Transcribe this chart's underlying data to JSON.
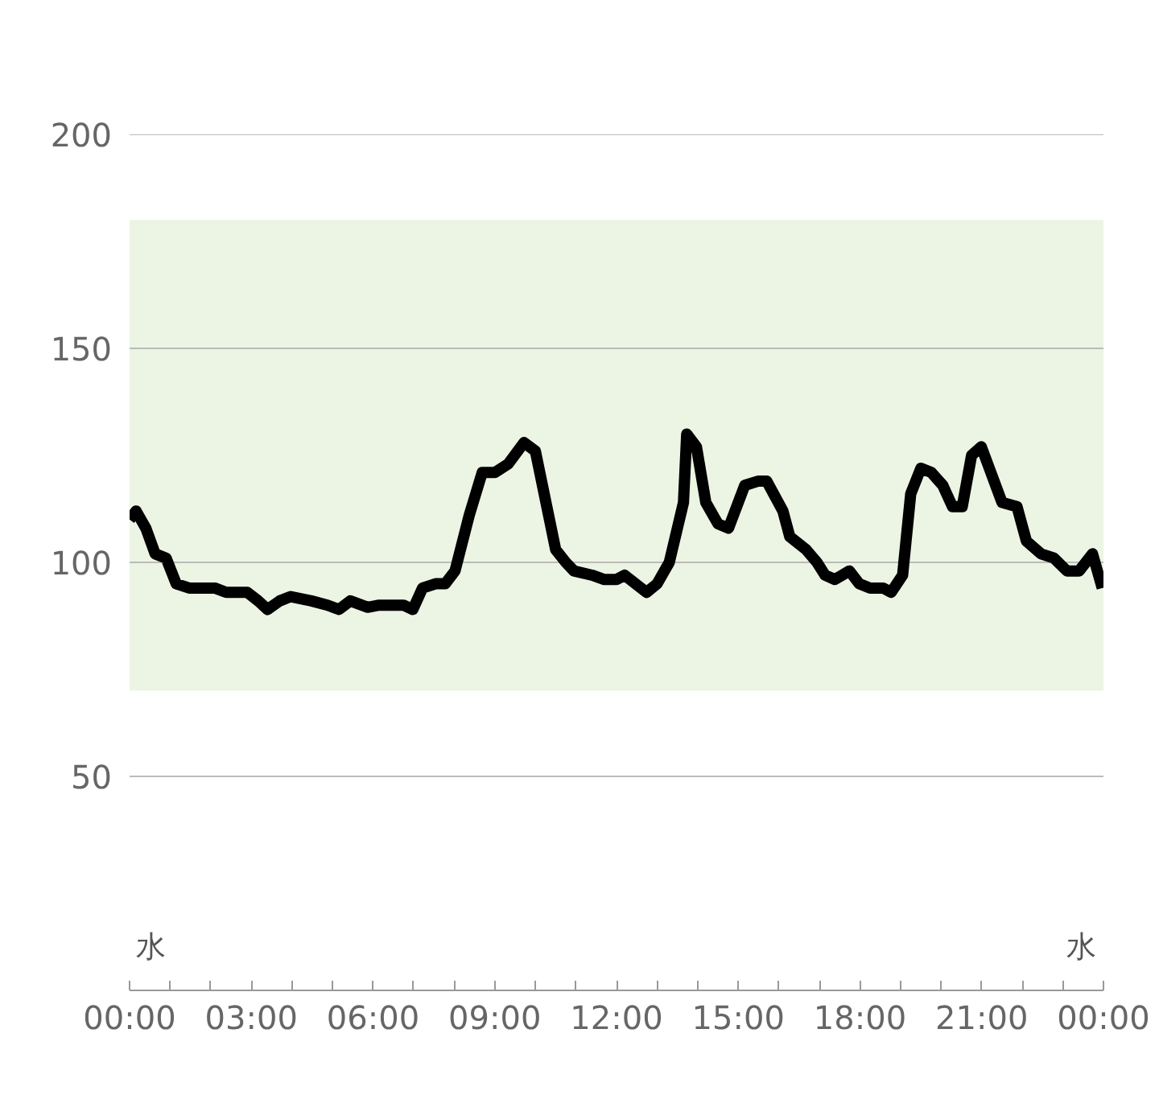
{
  "chart_data": {
    "type": "line",
    "x": [
      0,
      0.16,
      0.4,
      0.63,
      0.9,
      1.15,
      1.47,
      2.1,
      2.38,
      2.9,
      3.17,
      3.4,
      3.7,
      3.97,
      4.48,
      4.88,
      5.16,
      5.44,
      5.87,
      6.15,
      6.75,
      6.98,
      7.22,
      7.54,
      7.78,
      8.02,
      8.37,
      8.69,
      9.0,
      9.33,
      9.72,
      10.0,
      10.5,
      10.75,
      10.95,
      11.4,
      11.7,
      12.0,
      12.2,
      12.74,
      13.0,
      13.3,
      13.65,
      13.73,
      13.97,
      14.2,
      14.5,
      14.76,
      15.16,
      15.5,
      15.7,
      16.1,
      16.27,
      16.67,
      16.94,
      17.14,
      17.38,
      17.74,
      17.98,
      18.25,
      18.57,
      18.77,
      19.05,
      19.25,
      19.5,
      19.76,
      20.04,
      20.28,
      20.52,
      20.75,
      20.99,
      21.5,
      21.87,
      22.1,
      22.46,
      22.78,
      23.1,
      23.4,
      23.73,
      23.97
    ],
    "series": [
      {
        "color": "#000000",
        "values": [
          110,
          112,
          108,
          102,
          101,
          95,
          94,
          94,
          93,
          93,
          91,
          89,
          91,
          92,
          91,
          90,
          89,
          91,
          89.5,
          90,
          90,
          89,
          94,
          95,
          95,
          98,
          111,
          121,
          121,
          123,
          128,
          126,
          103,
          100,
          98,
          97,
          96,
          96,
          97,
          93,
          95,
          100,
          114,
          130,
          127,
          114,
          109,
          108,
          118,
          119,
          119,
          112,
          106,
          103,
          100,
          97,
          96,
          98,
          95,
          94,
          94,
          93,
          97,
          116,
          122,
          121,
          118,
          113,
          113,
          125,
          127,
          114,
          113,
          105,
          102,
          101,
          98,
          98,
          102,
          94
        ]
      }
    ],
    "xlim": [
      0,
      24
    ],
    "ylim": [
      0,
      200
    ],
    "xticks": [
      {
        "value": 0,
        "label": "00:00"
      },
      {
        "value": 1,
        "label": null
      },
      {
        "value": 2,
        "label": null
      },
      {
        "value": 3,
        "label": "03:00"
      },
      {
        "value": 4,
        "label": null
      },
      {
        "value": 5,
        "label": null
      },
      {
        "value": 6,
        "label": "06:00"
      },
      {
        "value": 7,
        "label": null
      },
      {
        "value": 8,
        "label": null
      },
      {
        "value": 9,
        "label": "09:00"
      },
      {
        "value": 10,
        "label": null
      },
      {
        "value": 11,
        "label": null
      },
      {
        "value": 12,
        "label": "12:00"
      },
      {
        "value": 13,
        "label": null
      },
      {
        "value": 14,
        "label": null
      },
      {
        "value": 15,
        "label": "15:00"
      },
      {
        "value": 16,
        "label": null
      },
      {
        "value": 17,
        "label": null
      },
      {
        "value": 18,
        "label": "18:00"
      },
      {
        "value": 19,
        "label": null
      },
      {
        "value": 20,
        "label": null
      },
      {
        "value": 21,
        "label": "21:00"
      },
      {
        "value": 22,
        "label": null
      },
      {
        "value": 23,
        "label": null
      },
      {
        "value": 24,
        "label": "00:00"
      }
    ],
    "yticks": [
      50,
      100,
      150,
      200
    ],
    "grid": "y",
    "marker": "none",
    "line_style": "solid",
    "bands": [
      {
        "axis": "y",
        "from": 70,
        "to": 180,
        "color": "#ecf4e4"
      }
    ],
    "annotations": [
      "水",
      "水"
    ]
  }
}
